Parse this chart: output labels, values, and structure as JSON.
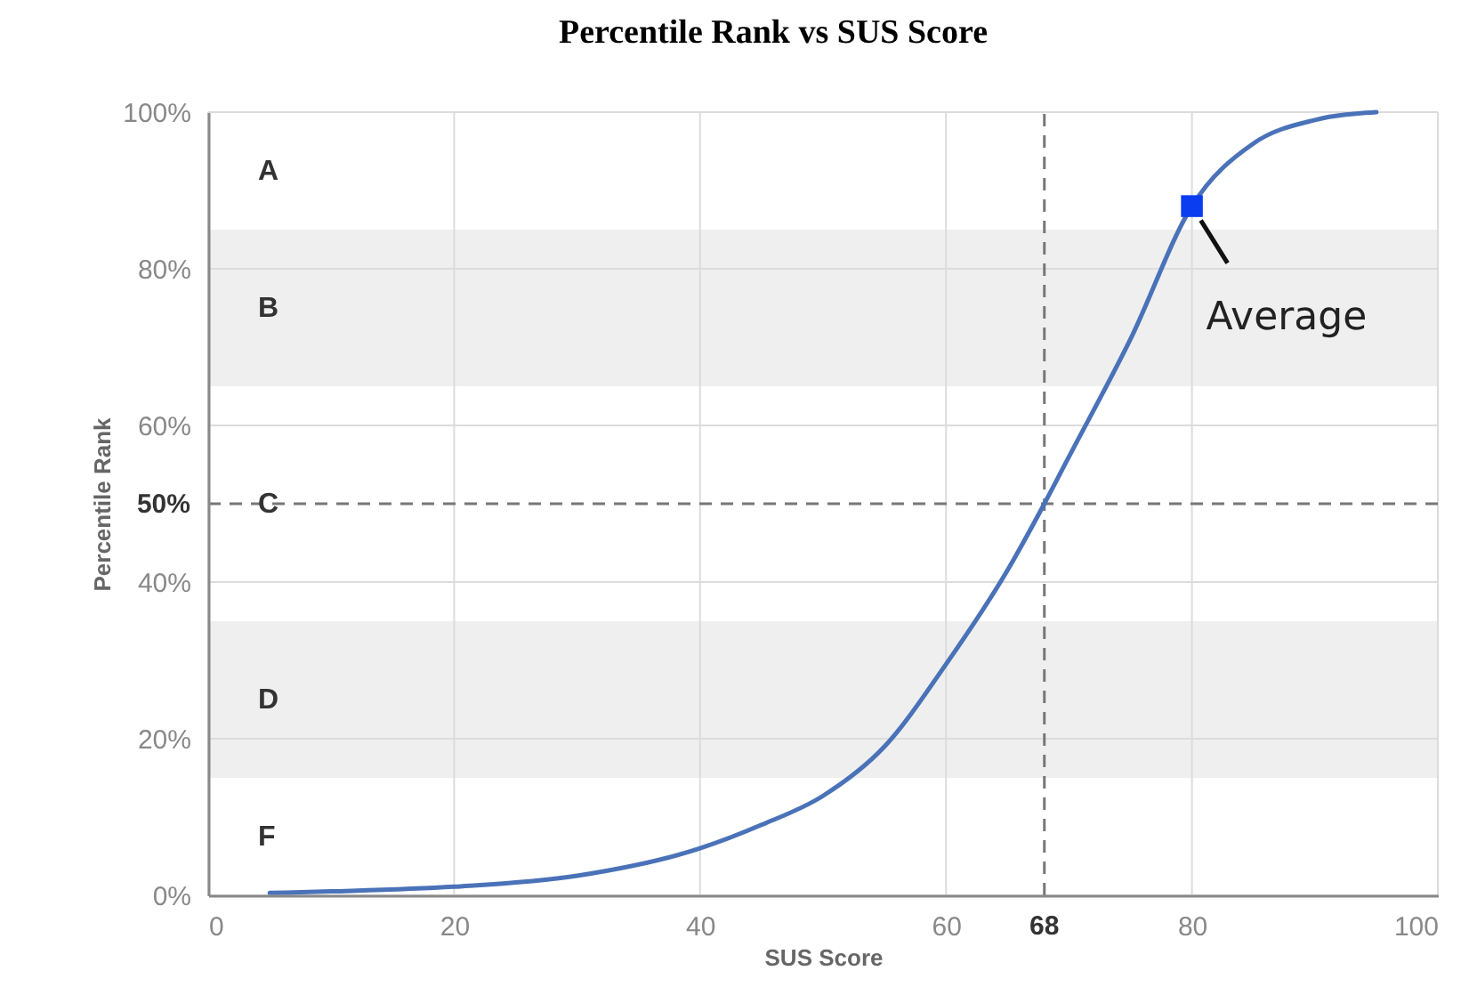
{
  "chart_data": {
    "type": "line",
    "title": "Percentile Rank vs SUS Score",
    "xlabel": "SUS Score",
    "ylabel": "Percentile Rank",
    "xlim": [
      0,
      100
    ],
    "ylim": [
      0,
      100
    ],
    "xticks": [
      0,
      20,
      40,
      60,
      80,
      100
    ],
    "yticks": [
      {
        "value": 0,
        "label": "0%"
      },
      {
        "value": 20,
        "label": "20%"
      },
      {
        "value": 40,
        "label": "40%"
      },
      {
        "value": 60,
        "label": "60%"
      },
      {
        "value": 80,
        "label": "80%"
      },
      {
        "value": 100,
        "label": "100%"
      }
    ],
    "grid": true,
    "series": [
      {
        "type": "line",
        "color": "#4a72b8",
        "x": [
          5,
          10,
          20,
          30,
          40,
          45,
          50,
          55,
          60,
          65,
          68,
          70,
          75,
          80,
          85,
          90,
          95
        ],
        "values": [
          0.3,
          0.5,
          1.1,
          2.5,
          6,
          9,
          12.7,
          19,
          29.5,
          41.5,
          50,
          56,
          71,
          88,
          96,
          99,
          100
        ]
      },
      {
        "type": "scatter",
        "marker": "square",
        "color": "#0a3cf0",
        "x": [
          80
        ],
        "values": [
          88
        ]
      }
    ],
    "ref_lines": [
      {
        "axis": "x",
        "value": 68,
        "label": "68",
        "line_style": "dashed",
        "color": "#777777"
      },
      {
        "axis": "y",
        "value": 50,
        "label": "50%",
        "line_style": "dashed",
        "color": "#777777"
      }
    ],
    "bands": [
      {
        "axis": "y",
        "from": 65,
        "to": 85,
        "label": "B",
        "color": "#efefef"
      },
      {
        "axis": "y",
        "from": 15,
        "to": 35,
        "label": "D",
        "color": "#efefef"
      }
    ],
    "annotations": [
      {
        "text": "Average",
        "x": 80,
        "y": 88
      },
      "A",
      "C",
      "F"
    ]
  }
}
